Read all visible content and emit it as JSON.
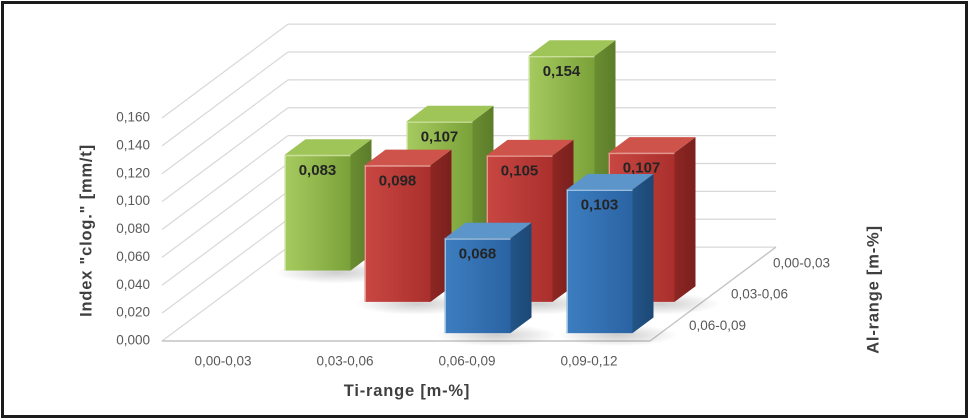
{
  "figure": {
    "background": "#ffffff",
    "border_color": "#1b1b1b"
  },
  "chart_data": {
    "type": "bar",
    "subtype": "3d-column",
    "title": "",
    "xlabel": "Ti-range [m-%]",
    "ylabel": "Index \"clog.\" [mm/t]",
    "zlabel": "Al-range [m-%]",
    "categories": [
      "0,00-0,03",
      "0,03-0,06",
      "0,06-0,09",
      "0,09-0,12"
    ],
    "depth_categories_front_to_back": [
      "0,06-0,09",
      "0,03-0,06",
      "0,00-0,03"
    ],
    "y_ticks": [
      "0,000",
      "0,020",
      "0,040",
      "0,060",
      "0,080",
      "0,100",
      "0,120",
      "0,140",
      "0,160"
    ],
    "ylim": [
      0,
      0.16
    ],
    "y_tick_step": 0.02,
    "grid": true,
    "legend": "none",
    "series": [
      {
        "name": "0,00-0,03",
        "depth_row": 2,
        "values": [
          0.083,
          0.107,
          0.154,
          null
        ],
        "labels": [
          "0,083",
          "0,107",
          "0,154",
          null
        ],
        "colors": {
          "front_light": "#A6CB60",
          "front_dark": "#7AA139",
          "side": "#6A8D31",
          "side_dark": "#5C7C2A",
          "top": "#9FC457",
          "highlight": "#CFE3A0"
        }
      },
      {
        "name": "0,03-0,06",
        "depth_row": 1,
        "values": [
          null,
          0.098,
          0.105,
          0.107
        ],
        "labels": [
          null,
          "0,098",
          "0,105",
          "0,107"
        ],
        "colors": {
          "front_light": "#C94743",
          "front_dark": "#AA2F2C",
          "side": "#8D2623",
          "side_dark": "#7A201E",
          "top": "#CE544B",
          "highlight": "#E8A198"
        }
      },
      {
        "name": "0,06-0,09",
        "depth_row": 0,
        "values": [
          null,
          null,
          0.068,
          0.103
        ],
        "labels": [
          null,
          null,
          "0,068",
          "0,103"
        ],
        "colors": {
          "front_light": "#3D7EC0",
          "front_dark": "#2A63A3",
          "side": "#225587",
          "side_dark": "#1C4875",
          "top": "#5C95CA",
          "highlight": "#A9C8E4"
        }
      }
    ],
    "style_colors": {
      "gridline": "#D8D8D8",
      "floor_edge": "#C4C4C4",
      "tick_text": "#595959",
      "axis_title_text": "#3F3F3F",
      "value_label_text": "#242424",
      "shadow": "#5A5A5A"
    }
  }
}
